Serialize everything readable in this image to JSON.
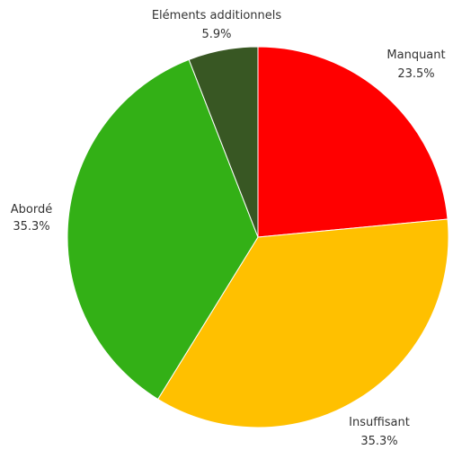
{
  "chart_data": {
    "type": "pie",
    "slices": [
      {
        "label": "Manquant",
        "value_label": "23.5%",
        "value": 23.5,
        "color": "#ff0000"
      },
      {
        "label": "Insuffisant",
        "value_label": "35.3%",
        "value": 35.3,
        "color": "#ffc000"
      },
      {
        "label": "Abordé",
        "value_label": "35.3%",
        "value": 35.3,
        "color": "#33b016"
      },
      {
        "label": "Eléments additionnels",
        "value_label": "5.9%",
        "value": 5.9,
        "color": "#385723"
      }
    ],
    "start": "12 o'clock",
    "direction": "clockwise"
  }
}
